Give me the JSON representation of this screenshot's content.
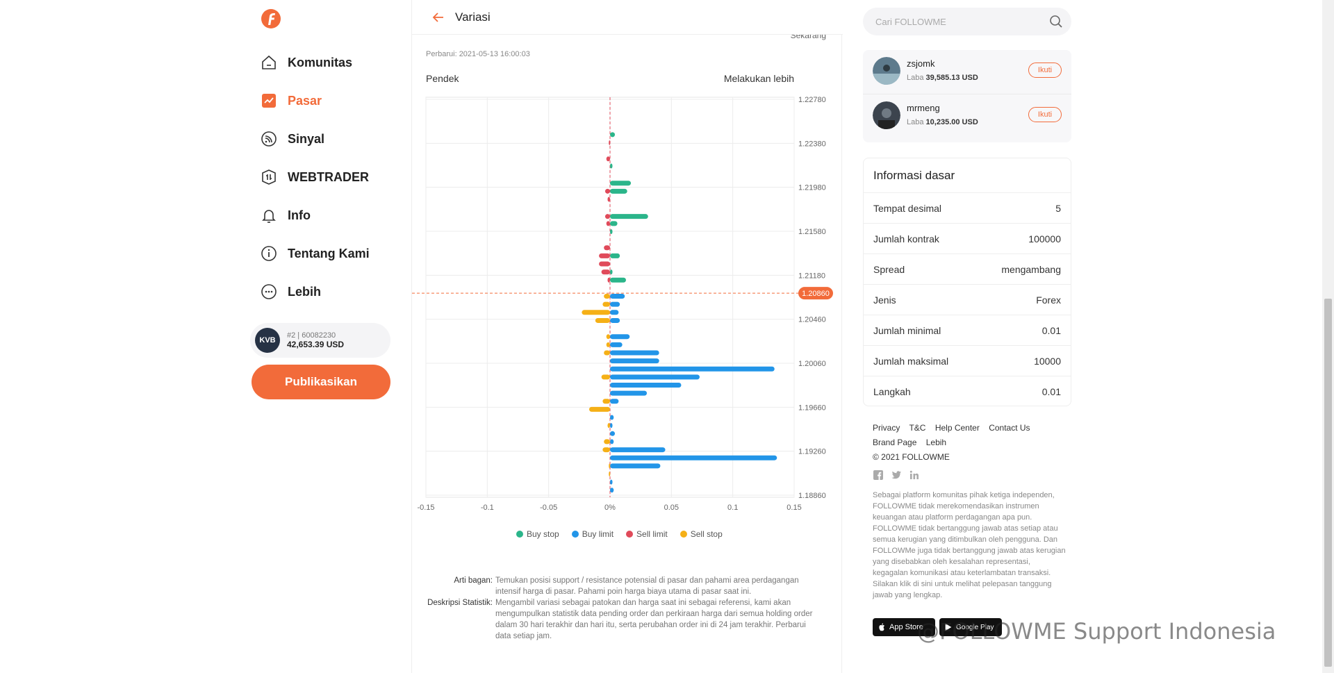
{
  "sidebar": {
    "items": [
      {
        "label": "Komunitas",
        "icon": "home-icon"
      },
      {
        "label": "Pasar",
        "icon": "chart-icon"
      },
      {
        "label": "Sinyal",
        "icon": "signal-icon"
      },
      {
        "label": "WEBTRADER",
        "icon": "webtrader-icon"
      },
      {
        "label": "Info",
        "icon": "bell-icon"
      },
      {
        "label": "Tentang Kami",
        "icon": "info-icon"
      },
      {
        "label": "Lebih",
        "icon": "more-icon"
      }
    ],
    "active": "Pasar",
    "account": {
      "avatar_text": "KVB",
      "rank": "#2",
      "id": "60082230",
      "balance": "42,653.39 USD"
    },
    "publish_label": "Publikasikan"
  },
  "main": {
    "title": "Variasi",
    "now_label": "Sekarang",
    "updated": "Perbarui: 2021-05-13 16:00:03",
    "short_label": "Pendek",
    "long_label": "Melakukan lebih",
    "description": [
      {
        "key": "Arti bagan:",
        "value": "Temukan posisi support / resistance potensial di pasar dan pahami area perdagangan intensif harga di pasar. Pahami poin harga biaya utama di pasar saat ini."
      },
      {
        "key": "Deskripsi Statistik:",
        "value": "Mengambil variasi sebagai patokan dan harga saat ini sebagai referensi, kami akan mengumpulkan statistik data pending order dan perkiraan harga dari semua holding order dalam 30 hari terakhir dan hari itu, serta perubahan order ini di 24 jam terakhir. Perbarui data setiap jam."
      }
    ]
  },
  "chart_data": {
    "type": "bar",
    "orientation": "horizontal",
    "current_price": "1.20860",
    "y_ticks": [
      "1.22780",
      "1.22380",
      "1.21980",
      "1.21580",
      "1.21180",
      "1.20860",
      "1.20460",
      "1.20060",
      "1.19660",
      "1.19260",
      "1.18860"
    ],
    "x_ticks": [
      "-0.15",
      "-0.1",
      "-0.05",
      "0%",
      "0.05",
      "0.1",
      "0.15"
    ],
    "xlim": [
      -0.15,
      0.15
    ],
    "ylim": [
      1.1886,
      1.2278
    ],
    "grid": true,
    "legend_position": "bottom",
    "series": [
      {
        "name": "Buy stop",
        "color": "#2bb58a",
        "points": [
          {
            "price": 1.2243,
            "value": 0.004
          },
          {
            "price": 1.2212,
            "value": 0.002
          },
          {
            "price": 1.2195,
            "value": 0.017
          },
          {
            "price": 1.2187,
            "value": 0.014
          },
          {
            "price": 1.2162,
            "value": 0.031
          },
          {
            "price": 1.2155,
            "value": 0.006
          },
          {
            "price": 1.2147,
            "value": 0.002
          },
          {
            "price": 1.2123,
            "value": 0.008
          },
          {
            "price": 1.2107,
            "value": 0.002
          },
          {
            "price": 1.2099,
            "value": 0.013
          }
        ]
      },
      {
        "name": "Buy limit",
        "color": "#2295e8",
        "points": [
          {
            "price": 1.2083,
            "value": 0.012
          },
          {
            "price": 1.2075,
            "value": 0.008
          },
          {
            "price": 1.2067,
            "value": 0.007
          },
          {
            "price": 1.2059,
            "value": 0.008
          },
          {
            "price": 1.2043,
            "value": 0.016
          },
          {
            "price": 1.2035,
            "value": 0.01
          },
          {
            "price": 1.2027,
            "value": 0.04
          },
          {
            "price": 1.2019,
            "value": 0.04
          },
          {
            "price": 1.2011,
            "value": 0.134
          },
          {
            "price": 1.2003,
            "value": 0.073
          },
          {
            "price": 1.1995,
            "value": 0.058
          },
          {
            "price": 1.1987,
            "value": 0.03
          },
          {
            "price": 1.1979,
            "value": 0.007
          },
          {
            "price": 1.1963,
            "value": 0.003
          },
          {
            "price": 1.1955,
            "value": 0.002
          },
          {
            "price": 1.1947,
            "value": 0.004
          },
          {
            "price": 1.1939,
            "value": 0.003
          },
          {
            "price": 1.1931,
            "value": 0.045
          },
          {
            "price": 1.1923,
            "value": 0.136
          },
          {
            "price": 1.1915,
            "value": 0.041
          },
          {
            "price": 1.1899,
            "value": 0.002
          },
          {
            "price": 1.1891,
            "value": 0.003
          }
        ]
      },
      {
        "name": "Sell limit",
        "color": "#e04a5a",
        "points": [
          {
            "price": 1.2235,
            "value": -0.001
          },
          {
            "price": 1.2219,
            "value": -0.003
          },
          {
            "price": 1.2187,
            "value": -0.004
          },
          {
            "price": 1.2179,
            "value": -0.002
          },
          {
            "price": 1.2162,
            "value": -0.004
          },
          {
            "price": 1.2155,
            "value": -0.003
          },
          {
            "price": 1.2131,
            "value": -0.005
          },
          {
            "price": 1.2123,
            "value": -0.009
          },
          {
            "price": 1.2115,
            "value": -0.009
          },
          {
            "price": 1.2107,
            "value": -0.007
          },
          {
            "price": 1.2099,
            "value": -0.002
          }
        ]
      },
      {
        "name": "Sell stop",
        "color": "#f5b017",
        "points": [
          {
            "price": 1.2083,
            "value": -0.005
          },
          {
            "price": 1.2075,
            "value": -0.006
          },
          {
            "price": 1.2067,
            "value": -0.023
          },
          {
            "price": 1.2059,
            "value": -0.012
          },
          {
            "price": 1.2043,
            "value": -0.003
          },
          {
            "price": 1.2035,
            "value": -0.003
          },
          {
            "price": 1.2027,
            "value": -0.005
          },
          {
            "price": 1.2003,
            "value": -0.007
          },
          {
            "price": 1.1979,
            "value": -0.006
          },
          {
            "price": 1.1971,
            "value": -0.017
          },
          {
            "price": 1.1955,
            "value": -0.002
          },
          {
            "price": 1.1939,
            "value": -0.005
          },
          {
            "price": 1.1931,
            "value": -0.006
          },
          {
            "price": 1.1915,
            "value": -0.001
          },
          {
            "price": 1.1907,
            "value": -0.001
          }
        ]
      }
    ]
  },
  "right": {
    "search_placeholder": "Cari FOLLOWME",
    "follow": [
      {
        "name": "zsjomk",
        "profit_label": "Laba",
        "profit": "39,585.13 USD",
        "button": "Ikuti"
      },
      {
        "name": "mrmeng",
        "profit_label": "Laba",
        "profit": "10,235.00 USD",
        "button": "Ikuti"
      }
    ],
    "info_title": "Informasi dasar",
    "info_rows": [
      {
        "label": "Tempat desimal",
        "value": "5"
      },
      {
        "label": "Jumlah kontrak",
        "value": "100000"
      },
      {
        "label": "Spread",
        "value": "mengambang"
      },
      {
        "label": "Jenis",
        "value": "Forex"
      },
      {
        "label": "Jumlah minimal",
        "value": "0.01"
      },
      {
        "label": "Jumlah maksimal",
        "value": "10000"
      },
      {
        "label": "Langkah",
        "value": "0.01"
      }
    ],
    "footer_links": [
      "Privacy",
      "T&C",
      "Help Center",
      "Contact Us",
      "Brand Page",
      "Lebih"
    ],
    "copyright": "© 2021 FOLLOWME",
    "disclaimer": "Sebagai platform komunitas pihak ketiga independen, FOLLOWME tidak merekomendasikan instrumen keuangan atau platform perdagangan apa pun. FOLLOWME tidak bertanggung jawab atas setiap atau semua kerugian yang ditimbulkan oleh pengguna. Dan FOLLOWMe juga tidak bertanggung jawab atas kerugian yang disebabkan oleh kesalahan representasi, kegagalan komunikasi atau keterlambatan transaksi. Silakan klik di sini untuk melihat pelepasan tanggung jawab yang lengkap.",
    "app_store": "App Store",
    "google_play": "Google Play",
    "watermark": "@FOLLOWME Support Indonesia"
  }
}
